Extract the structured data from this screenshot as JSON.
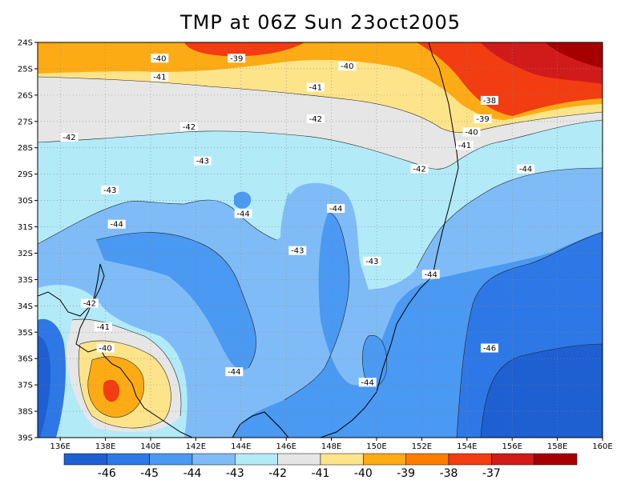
{
  "title": "TMP at 06Z Sun 23oct2005",
  "map": {
    "lon_range": [
      135,
      160
    ],
    "lat_range": [
      -39,
      -24
    ],
    "grid": "dotted",
    "x_ticks": [
      "136E",
      "138E",
      "140E",
      "142E",
      "144E",
      "146E",
      "148E",
      "150E",
      "152E",
      "154E",
      "156E",
      "158E",
      "160E"
    ],
    "y_ticks": [
      "24S",
      "25S",
      "26S",
      "27S",
      "28S",
      "29S",
      "30S",
      "31S",
      "32S",
      "33S",
      "34S",
      "35S",
      "36S",
      "37S",
      "38S",
      "39S"
    ]
  },
  "colorbar": {
    "colors": [
      "#1e5fd2",
      "#2d78e6",
      "#4a99f2",
      "#7fbcf7",
      "#b2eaf8",
      "#e6e6e6",
      "#fde48a",
      "#fdab15",
      "#fd7d00",
      "#f23c11",
      "#d11b1b",
      "#a60000"
    ],
    "labels": [
      "-46",
      "-45",
      "-44",
      "-43",
      "-42",
      "-41",
      "-40",
      "-39",
      "-38",
      "-37"
    ]
  },
  "contour_labels": [
    {
      "text": "-40",
      "lon": 140.4,
      "lat": -24.6
    },
    {
      "text": "-39",
      "lon": 143.8,
      "lat": -24.6
    },
    {
      "text": "-40",
      "lon": 148.7,
      "lat": -24.9
    },
    {
      "text": "-41",
      "lon": 140.4,
      "lat": -25.3
    },
    {
      "text": "-41",
      "lon": 147.3,
      "lat": -25.7
    },
    {
      "text": "-38",
      "lon": 155.0,
      "lat": -26.2
    },
    {
      "text": "-42",
      "lon": 147.3,
      "lat": -26.9
    },
    {
      "text": "-39",
      "lon": 154.7,
      "lat": -26.9
    },
    {
      "text": "-42",
      "lon": 141.7,
      "lat": -27.2
    },
    {
      "text": "-40",
      "lon": 154.2,
      "lat": -27.4
    },
    {
      "text": "-42",
      "lon": 136.4,
      "lat": -27.6
    },
    {
      "text": "-41",
      "lon": 153.9,
      "lat": -27.9
    },
    {
      "text": "-43",
      "lon": 142.3,
      "lat": -28.5
    },
    {
      "text": "-42",
      "lon": 151.9,
      "lat": -28.8
    },
    {
      "text": "-44",
      "lon": 156.6,
      "lat": -28.8
    },
    {
      "text": "-43",
      "lon": 138.2,
      "lat": -29.6
    },
    {
      "text": "-44",
      "lon": 144.1,
      "lat": -30.5
    },
    {
      "text": "-44",
      "lon": 148.2,
      "lat": -30.3
    },
    {
      "text": "-44",
      "lon": 138.5,
      "lat": -30.9
    },
    {
      "text": "-43",
      "lon": 146.5,
      "lat": -31.9
    },
    {
      "text": "-43",
      "lon": 149.8,
      "lat": -32.3
    },
    {
      "text": "-44",
      "lon": 152.4,
      "lat": -32.8
    },
    {
      "text": "-42",
      "lon": 137.3,
      "lat": -33.9
    },
    {
      "text": "-41",
      "lon": 137.9,
      "lat": -34.8
    },
    {
      "text": "-40",
      "lon": 138.0,
      "lat": -35.6
    },
    {
      "text": "-46",
      "lon": 155.0,
      "lat": -35.6
    },
    {
      "text": "-44",
      "lon": 143.7,
      "lat": -36.5
    },
    {
      "text": "-44",
      "lon": 149.6,
      "lat": -36.9
    }
  ]
}
